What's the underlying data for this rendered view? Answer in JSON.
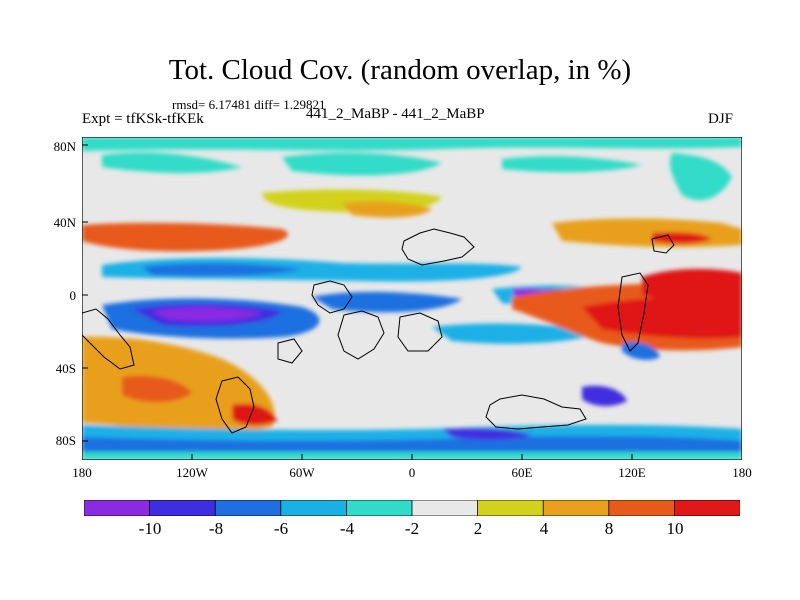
{
  "header": {
    "title": "Tot. Cloud Cov. (random overlap, in %)",
    "stats": "rmsd= 6.17481 diff= 1.29821",
    "expt": "Expt = tfKSk-tfKEk",
    "runs": "441_2_MaBP - 441_2_MaBP",
    "season": "DJF"
  },
  "map": {
    "type": "filled-contour",
    "x_ticks": [
      "180",
      "120W",
      "60W",
      "0",
      "60E",
      "120E",
      "180"
    ],
    "y_ticks": [
      "80N",
      "40N",
      "0",
      "40S",
      "80S"
    ]
  },
  "colorbar": {
    "labels": [
      "-10",
      "-8",
      "-6",
      "-4",
      "-2",
      "2",
      "4",
      "8",
      "10"
    ],
    "colors": [
      "#8a2be2",
      "#3f2ee0",
      "#1f6fe0",
      "#1ab0e6",
      "#30dcc8",
      "#e8e8e8",
      "#d2d21e",
      "#e8a01e",
      "#e85a1a",
      "#e01818"
    ]
  },
  "colors": {
    "background": "#e8e8e8",
    "land_outline": "#000000"
  }
}
